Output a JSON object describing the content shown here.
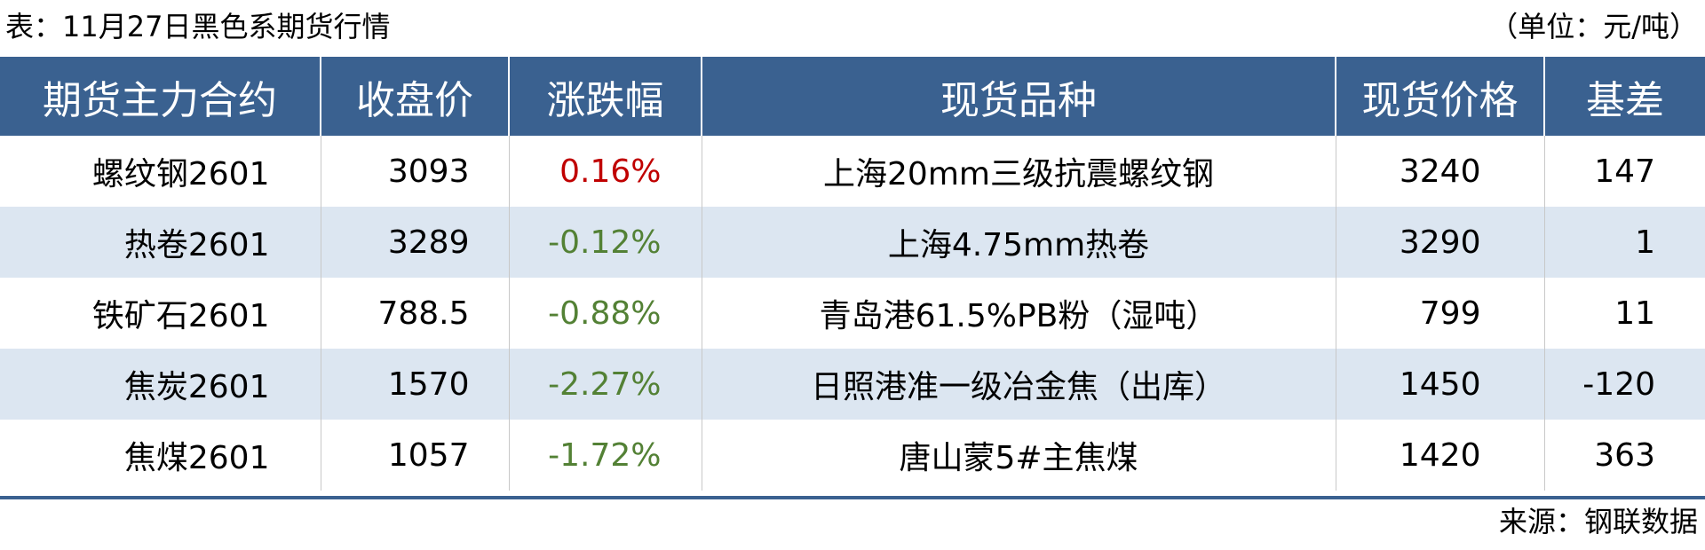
{
  "title": "表：11月27日黑色系期货行情",
  "unit": "（单位：元/吨）",
  "colors": {
    "header_bg": "#3a6190",
    "alt_row_bg": "#dce6f1",
    "up": "#c00000",
    "down": "#538135"
  },
  "headers": [
    "期货主力合约",
    "收盘价",
    "涨跌幅",
    "现货品种",
    "现货价格",
    "基差"
  ],
  "rows": [
    {
      "contract": "螺纹钢2601",
      "close": "3093",
      "change": "0.16%",
      "dir": "up",
      "spot": "上海20mm三级抗震螺纹钢",
      "spot_price": "3240",
      "basis": "147"
    },
    {
      "contract": "热卷2601",
      "close": "3289",
      "change": "-0.12%",
      "dir": "down",
      "spot": "上海4.75mm热卷",
      "spot_price": "3290",
      "basis": "1"
    },
    {
      "contract": "铁矿石2601",
      "close": "788.5",
      "change": "-0.88%",
      "dir": "down",
      "spot": "青岛港61.5%PB粉（湿吨）",
      "spot_price": "799",
      "basis": "11"
    },
    {
      "contract": "焦炭2601",
      "close": "1570",
      "change": "-2.27%",
      "dir": "down",
      "spot": "日照港准一级冶金焦（出库）",
      "spot_price": "1450",
      "basis": "-120"
    },
    {
      "contract": "焦煤2601",
      "close": "1057",
      "change": "-1.72%",
      "dir": "down",
      "spot": "唐山蒙5#主焦煤",
      "spot_price": "1420",
      "basis": "363"
    }
  ],
  "source": "来源：钢联数据"
}
